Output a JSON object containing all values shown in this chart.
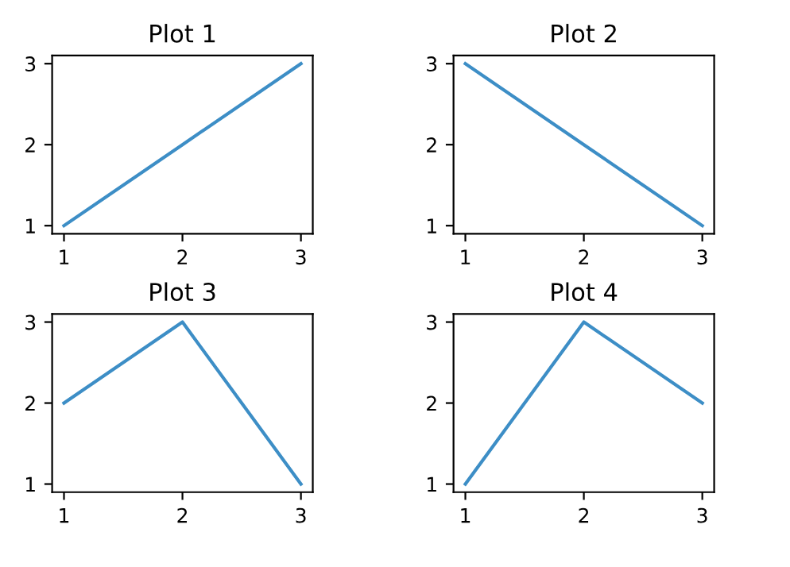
{
  "chart_data": [
    {
      "type": "line",
      "title": "Plot 1",
      "x": [
        1,
        2,
        3
      ],
      "series": [
        {
          "color": "#3d8ec6",
          "values": [
            1,
            2,
            3
          ]
        }
      ],
      "xlim": [
        0.9,
        3.1
      ],
      "ylim": [
        0.9,
        3.1
      ],
      "xticks": [
        1,
        2,
        3
      ],
      "yticks": [
        1,
        2,
        3
      ],
      "grid": false
    },
    {
      "type": "line",
      "title": "Plot 2",
      "x": [
        1,
        2,
        3
      ],
      "series": [
        {
          "color": "#3d8ec6",
          "values": [
            3,
            2,
            1
          ]
        }
      ],
      "xlim": [
        0.9,
        3.1
      ],
      "ylim": [
        0.9,
        3.1
      ],
      "xticks": [
        1,
        2,
        3
      ],
      "yticks": [
        1,
        2,
        3
      ],
      "grid": false
    },
    {
      "type": "line",
      "title": "Plot 3",
      "x": [
        1,
        2,
        3
      ],
      "series": [
        {
          "color": "#3d8ec6",
          "values": [
            2,
            3,
            1
          ]
        }
      ],
      "xlim": [
        0.9,
        3.1
      ],
      "ylim": [
        0.9,
        3.1
      ],
      "xticks": [
        1,
        2,
        3
      ],
      "yticks": [
        1,
        2,
        3
      ],
      "grid": false
    },
    {
      "type": "line",
      "title": "Plot 4",
      "x": [
        1,
        2,
        3
      ],
      "series": [
        {
          "color": "#3d8ec6",
          "values": [
            1,
            3,
            2
          ]
        }
      ],
      "xlim": [
        0.9,
        3.1
      ],
      "ylim": [
        0.9,
        3.1
      ],
      "xticks": [
        1,
        2,
        3
      ],
      "yticks": [
        1,
        2,
        3
      ],
      "grid": false
    }
  ]
}
